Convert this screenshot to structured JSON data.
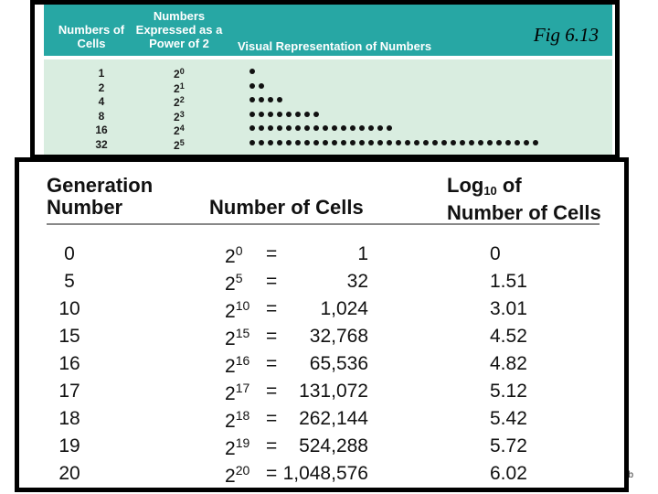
{
  "figure": {
    "label": "Fig 6.13",
    "headers": {
      "cells": "Numbers of Cells",
      "power": "Numbers Expressed as a Power of 2",
      "visual": "Visual Representation of Numbers"
    },
    "rows": [
      {
        "cells": "1",
        "base": "2",
        "exp": "0",
        "dots": 1
      },
      {
        "cells": "2",
        "base": "2",
        "exp": "1",
        "dots": 2
      },
      {
        "cells": "4",
        "base": "2",
        "exp": "2",
        "dots": 4
      },
      {
        "cells": "8",
        "base": "2",
        "exp": "3",
        "dots": 8
      },
      {
        "cells": "16",
        "base": "2",
        "exp": "4",
        "dots": 16
      },
      {
        "cells": "32",
        "base": "2",
        "exp": "5",
        "dots": 32
      }
    ]
  },
  "table": {
    "headers": {
      "generation_line1": "Generation",
      "generation_line2": "Number",
      "cells": "Number of Cells",
      "log_line1_a": "Log",
      "log_line1_sub": "10",
      "log_line1_b": " of",
      "log_line2": "Number of Cells"
    },
    "equals": "=",
    "rows": [
      {
        "gen": "0",
        "base": "2",
        "exp": "0",
        "cells": "1",
        "log": "0"
      },
      {
        "gen": "5",
        "base": "2",
        "exp": "5",
        "cells": "32",
        "log": "1.51"
      },
      {
        "gen": "10",
        "base": "2",
        "exp": "10",
        "cells": "1,024",
        "log": "3.01"
      },
      {
        "gen": "15",
        "base": "2",
        "exp": "15",
        "cells": "32,768",
        "log": "4.52"
      },
      {
        "gen": "16",
        "base": "2",
        "exp": "16",
        "cells": "65,536",
        "log": "4.82"
      },
      {
        "gen": "17",
        "base": "2",
        "exp": "17",
        "cells": "131,072",
        "log": "5.12"
      },
      {
        "gen": "18",
        "base": "2",
        "exp": "18",
        "cells": "262,144",
        "log": "5.42"
      },
      {
        "gen": "19",
        "base": "2",
        "exp": "19",
        "cells": "524,288",
        "log": "5.72"
      },
      {
        "gen": "20",
        "base": "2",
        "exp": "20",
        "cells": "1,048,576",
        "log": "6.02"
      }
    ]
  },
  "corner_mark": "b"
}
